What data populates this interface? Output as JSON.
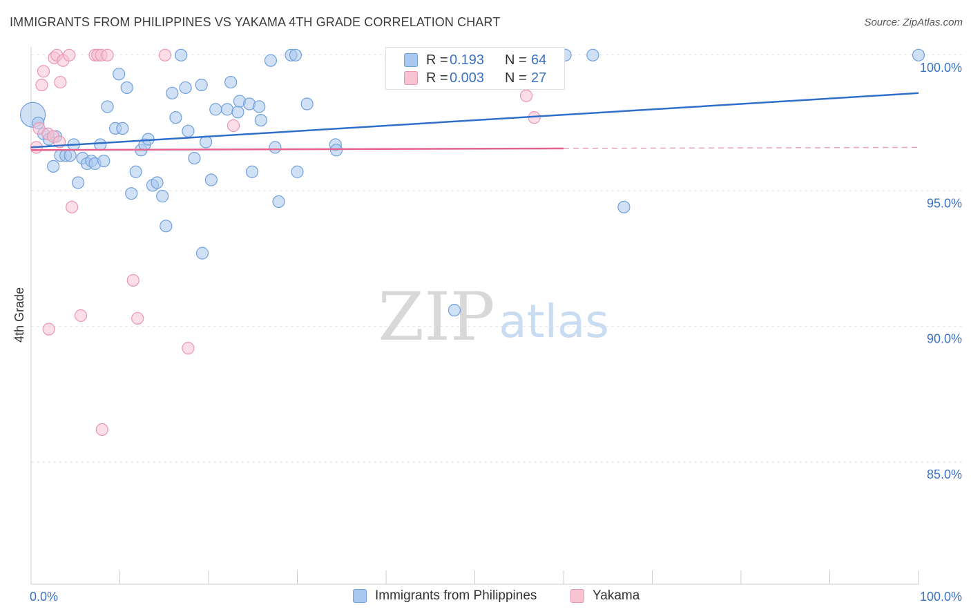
{
  "title": "IMMIGRANTS FROM PHILIPPINES VS YAKAMA 4TH GRADE CORRELATION CHART",
  "source": "Source: ZipAtlas.com",
  "watermark": {
    "zip": "ZIP",
    "atlas": "atlas"
  },
  "colors": {
    "blue_fill": "#a9c8ef",
    "blue_stroke": "#6f9fdc",
    "blue_line": "#2f6fc9",
    "pink_fill": "#f7c3d3",
    "pink_stroke": "#e996b1",
    "pink_line": "#e4628c",
    "axis_text": "#3a72c4",
    "grid": "#e2e2e2"
  },
  "stats_box": {
    "r_label": "R =",
    "n_label": "N =",
    "rows": [
      {
        "series": "Immigrants from Philippines",
        "r": "0.193",
        "n": "64"
      },
      {
        "series": "Yakama",
        "r": "0.003",
        "n": "27"
      }
    ]
  },
  "chart_data": {
    "type": "scatter",
    "title": "IMMIGRANTS FROM PHILIPPINES VS YAKAMA 4TH GRADE CORRELATION CHART",
    "xlabel": "",
    "ylabel": "4th Grade",
    "xlim": [
      0,
      100
    ],
    "ylim": [
      80.5,
      100.3
    ],
    "x_tick_labels": [
      {
        "value": 0,
        "label": "0.0%"
      },
      {
        "value": 100,
        "label": "100.0%"
      }
    ],
    "y_tick_labels": [
      {
        "value": 100,
        "label": "100.0%"
      },
      {
        "value": 95,
        "label": "95.0%"
      },
      {
        "value": 90,
        "label": "90.0%"
      },
      {
        "value": 85,
        "label": "85.0%"
      }
    ],
    "grid": true,
    "legend": "bottom-center",
    "series": [
      {
        "name": "Immigrants from Philippines",
        "color": "blue",
        "trend": {
          "x0": 0,
          "y0": 96.6,
          "x1": 100,
          "y1": 98.6,
          "solid_until": 100
        },
        "points": [
          {
            "x": 0.2,
            "y": 97.8,
            "big": true
          },
          {
            "x": 0.8,
            "y": 97.5
          },
          {
            "x": 1.4,
            "y": 97.1
          },
          {
            "x": 2.0,
            "y": 96.9
          },
          {
            "x": 2.8,
            "y": 97.0
          },
          {
            "x": 2.5,
            "y": 95.9
          },
          {
            "x": 3.3,
            "y": 96.3
          },
          {
            "x": 3.9,
            "y": 96.3
          },
          {
            "x": 4.4,
            "y": 96.3
          },
          {
            "x": 4.8,
            "y": 96.7
          },
          {
            "x": 5.3,
            "y": 95.3
          },
          {
            "x": 5.8,
            "y": 96.2
          },
          {
            "x": 6.3,
            "y": 96.0
          },
          {
            "x": 6.8,
            "y": 96.1
          },
          {
            "x": 7.2,
            "y": 96.0
          },
          {
            "x": 7.8,
            "y": 96.7
          },
          {
            "x": 8.2,
            "y": 96.1
          },
          {
            "x": 8.6,
            "y": 98.1
          },
          {
            "x": 9.5,
            "y": 97.3
          },
          {
            "x": 9.9,
            "y": 99.3
          },
          {
            "x": 10.3,
            "y": 97.3
          },
          {
            "x": 10.8,
            "y": 98.8
          },
          {
            "x": 11.3,
            "y": 94.9
          },
          {
            "x": 11.8,
            "y": 95.7
          },
          {
            "x": 12.4,
            "y": 96.5
          },
          {
            "x": 12.8,
            "y": 96.7
          },
          {
            "x": 13.2,
            "y": 96.9
          },
          {
            "x": 13.7,
            "y": 95.2
          },
          {
            "x": 14.2,
            "y": 95.3
          },
          {
            "x": 14.8,
            "y": 94.8
          },
          {
            "x": 15.2,
            "y": 93.7
          },
          {
            "x": 15.9,
            "y": 98.6
          },
          {
            "x": 16.3,
            "y": 97.7
          },
          {
            "x": 16.9,
            "y": 100.0
          },
          {
            "x": 17.4,
            "y": 98.8
          },
          {
            "x": 17.7,
            "y": 97.2
          },
          {
            "x": 18.4,
            "y": 96.2
          },
          {
            "x": 19.2,
            "y": 98.9
          },
          {
            "x": 19.3,
            "y": 92.7
          },
          {
            "x": 19.7,
            "y": 96.8
          },
          {
            "x": 20.3,
            "y": 95.4
          },
          {
            "x": 20.8,
            "y": 98.0
          },
          {
            "x": 22.1,
            "y": 98.0
          },
          {
            "x": 22.5,
            "y": 99.0
          },
          {
            "x": 23.3,
            "y": 97.9
          },
          {
            "x": 23.5,
            "y": 98.3
          },
          {
            "x": 24.6,
            "y": 98.2
          },
          {
            "x": 24.9,
            "y": 95.7
          },
          {
            "x": 25.7,
            "y": 98.1
          },
          {
            "x": 25.9,
            "y": 97.6
          },
          {
            "x": 27.0,
            "y": 99.8
          },
          {
            "x": 27.5,
            "y": 96.6
          },
          {
            "x": 27.9,
            "y": 94.6
          },
          {
            "x": 29.3,
            "y": 100.0
          },
          {
            "x": 29.8,
            "y": 100.0
          },
          {
            "x": 30.0,
            "y": 95.7
          },
          {
            "x": 31.1,
            "y": 98.2
          },
          {
            "x": 34.3,
            "y": 96.7
          },
          {
            "x": 34.4,
            "y": 96.5
          },
          {
            "x": 47.7,
            "y": 90.6
          },
          {
            "x": 60.2,
            "y": 100.0
          },
          {
            "x": 63.3,
            "y": 100.0
          },
          {
            "x": 66.8,
            "y": 94.4
          },
          {
            "x": 100.0,
            "y": 100.0
          }
        ]
      },
      {
        "name": "Yakama",
        "color": "pink",
        "trend": {
          "x0": 0,
          "y0": 96.5,
          "x1": 100,
          "y1": 96.6,
          "solid_until": 60
        },
        "points": [
          {
            "x": 0.6,
            "y": 96.6
          },
          {
            "x": 0.9,
            "y": 97.3
          },
          {
            "x": 1.2,
            "y": 98.9
          },
          {
            "x": 1.4,
            "y": 99.4
          },
          {
            "x": 1.9,
            "y": 97.1
          },
          {
            "x": 2.0,
            "y": 89.9
          },
          {
            "x": 2.5,
            "y": 97.0
          },
          {
            "x": 2.6,
            "y": 99.9
          },
          {
            "x": 2.9,
            "y": 100.0
          },
          {
            "x": 3.2,
            "y": 96.8
          },
          {
            "x": 3.3,
            "y": 99.0
          },
          {
            "x": 3.6,
            "y": 99.8
          },
          {
            "x": 4.3,
            "y": 100.0
          },
          {
            "x": 4.6,
            "y": 94.4
          },
          {
            "x": 5.6,
            "y": 90.4
          },
          {
            "x": 7.2,
            "y": 100.0
          },
          {
            "x": 7.5,
            "y": 100.0
          },
          {
            "x": 7.9,
            "y": 100.0
          },
          {
            "x": 8.0,
            "y": 86.2
          },
          {
            "x": 8.6,
            "y": 100.0
          },
          {
            "x": 11.5,
            "y": 91.7
          },
          {
            "x": 12.0,
            "y": 90.3
          },
          {
            "x": 15.1,
            "y": 100.0
          },
          {
            "x": 17.7,
            "y": 89.2
          },
          {
            "x": 22.8,
            "y": 97.4
          },
          {
            "x": 55.8,
            "y": 98.5
          },
          {
            "x": 56.7,
            "y": 97.7
          }
        ]
      }
    ]
  }
}
